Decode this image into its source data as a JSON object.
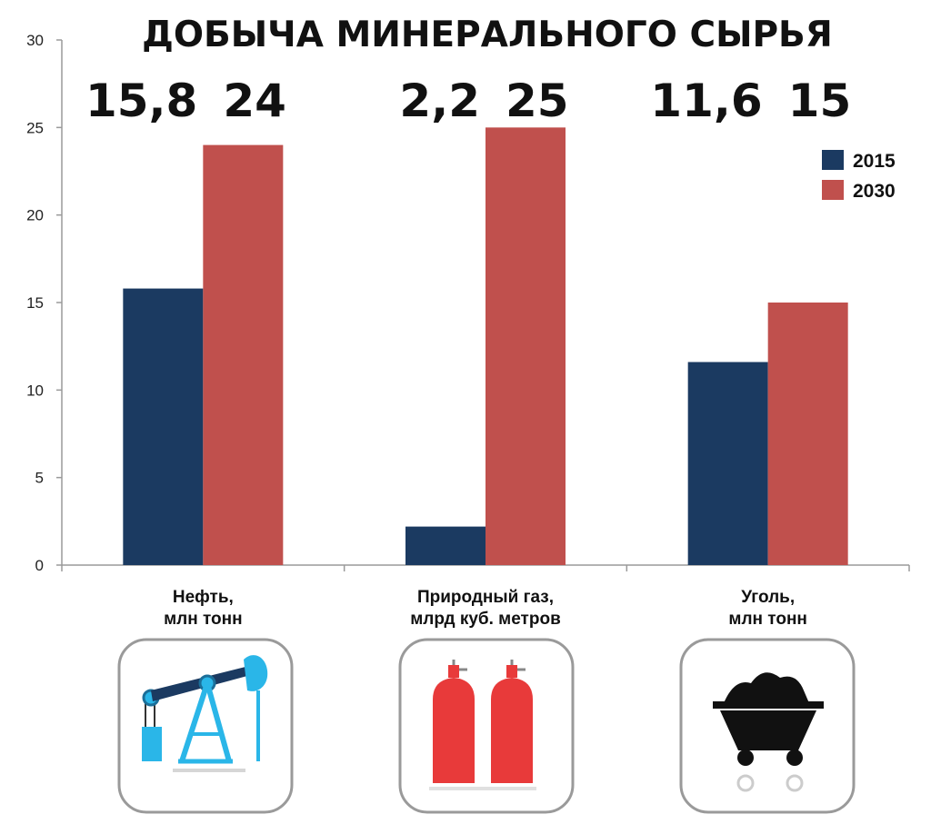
{
  "chart_data": {
    "type": "bar",
    "title": "ДОБЫЧА МИНЕРАЛЬНОГО СЫРЬЯ",
    "categories": [
      [
        "Нефть,",
        "млн тонн"
      ],
      [
        "Природный газ,",
        "млрд куб. метров"
      ],
      [
        "Уголь,",
        "млн тонн"
      ]
    ],
    "series": [
      {
        "name": "2015",
        "values": [
          15.8,
          2.2,
          11.6
        ],
        "color": "#1b3a61"
      },
      {
        "name": "2030",
        "values": [
          24,
          25,
          15
        ],
        "color": "#c0504d"
      }
    ],
    "value_labels": [
      [
        "15,8",
        "24"
      ],
      [
        "2,2",
        "25"
      ],
      [
        "11,6",
        "15"
      ]
    ],
    "y_ticks": [
      "0",
      "5",
      "10",
      "15",
      "20",
      "25",
      "30"
    ],
    "ylim": [
      0,
      30
    ],
    "grid": false,
    "legend": "top-right"
  },
  "icons": [
    "oil-pump-icon",
    "gas-cylinders-icon",
    "coal-cart-icon"
  ]
}
